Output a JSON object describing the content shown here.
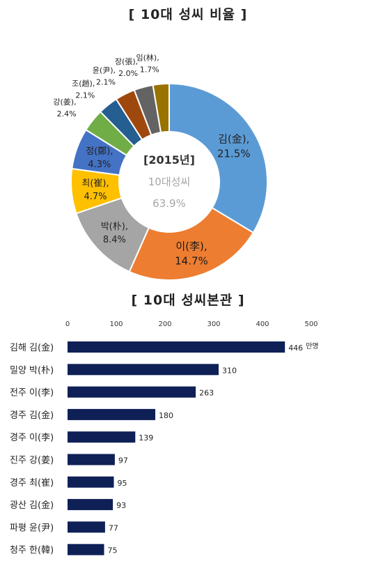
{
  "chart_data": [
    {
      "type": "pie",
      "title": "[ 10대 성씨 비율 ]",
      "center_text": {
        "line1": "[2015년]",
        "line2": "10대성씨",
        "line3": "63.9%"
      },
      "slices": [
        {
          "label": "김(金),",
          "value": 21.5,
          "value_label": "21.5%",
          "color": "#5b9bd5"
        },
        {
          "label": "이(李),",
          "value": 14.7,
          "value_label": "14.7%",
          "color": "#ed7d31"
        },
        {
          "label": "박(朴),",
          "value": 8.4,
          "value_label": "8.4%",
          "color": "#a5a5a5"
        },
        {
          "label": "최(崔),",
          "value": 4.7,
          "value_label": "4.7%",
          "color": "#ffc000"
        },
        {
          "label": "정(鄭),",
          "value": 4.3,
          "value_label": "4.3%",
          "color": "#4472c4"
        },
        {
          "label": "강(姜),",
          "value": 2.4,
          "value_label": "2.4%",
          "color": "#70ad47"
        },
        {
          "label": "조(趙),",
          "value": 2.1,
          "value_label": "2.1%",
          "color": "#255e91"
        },
        {
          "label": "윤(尹),",
          "value": 2.1,
          "value_label": "2.1%",
          "color": "#9e480e"
        },
        {
          "label": "장(張),",
          "value": 2.0,
          "value_label": "2.0%",
          "color": "#636363"
        },
        {
          "label": "임(林),",
          "value": 1.7,
          "value_label": "1.7%",
          "color": "#997300"
        }
      ]
    },
    {
      "type": "bar",
      "orientation": "horizontal",
      "title": "[ 10대 성씨본관 ]",
      "xlim": [
        0,
        500
      ],
      "ticks": [
        "0",
        "100",
        "200",
        "300",
        "400",
        "500"
      ],
      "unit_label": "만명",
      "bar_color": "#0f2057",
      "categories": [
        "김해 김(金)",
        "밀양 박(朴)",
        "전주 이(李)",
        "경주 김(金)",
        "경주 이(李)",
        "진주 강(姜)",
        "경주 최(崔)",
        "광산 김(金)",
        "파평 윤(尹)",
        "청주 한(韓)"
      ],
      "values": [
        446,
        310,
        263,
        180,
        139,
        97,
        95,
        93,
        77,
        75
      ],
      "value_labels": [
        "446",
        "310",
        "263",
        "180",
        "139",
        "97",
        "95",
        "93",
        "77",
        "75"
      ]
    }
  ]
}
